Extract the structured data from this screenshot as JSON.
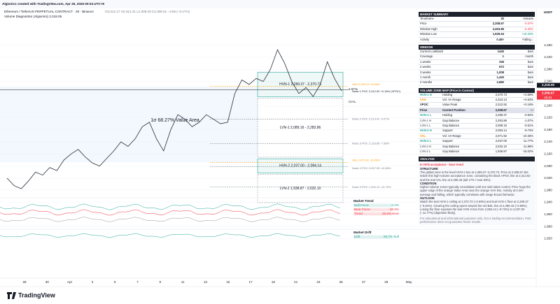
{
  "header": {
    "credit": "Algionics created with TradingView.com, Apr 25, 2026 00:04 UTC+9",
    "symbol": "Ethereum / TetherUS PERPETUAL CONTRACT · 30 · Binance",
    "ohlc": "O2,312.17 H2,312.41 L2,308.29 C2,308.51 −3.86 (−0.17%)",
    "indicator": "Volume Diagnostics (Algionics) 2,318.05"
  },
  "price_axis": {
    "unit": "USDT",
    "ylim": [
      1800,
      2480
    ],
    "yticks": [
      {
        "value": 1820,
        "label": "1,820"
      },
      {
        "value": 1860,
        "label": "1,860"
      },
      {
        "value": 1900,
        "label": "1,900"
      },
      {
        "value": 1940,
        "label": "1,940"
      },
      {
        "value": 1980,
        "label": "1,980"
      },
      {
        "value": 2020,
        "label": "2,020"
      },
      {
        "value": 2060,
        "label": "2,060"
      },
      {
        "value": 2100,
        "label": "2,100"
      },
      {
        "value": 2140,
        "label": "2,140"
      },
      {
        "value": 2180,
        "label": "2,180"
      },
      {
        "value": 2220,
        "label": "2,220"
      },
      {
        "value": 2260,
        "label": "2,260"
      },
      {
        "value": 2300,
        "label": "2,300"
      },
      {
        "value": 2340,
        "label": "2,340"
      },
      {
        "value": 2380,
        "label": "2,380"
      },
      {
        "value": 2420,
        "label": "2,420"
      },
      {
        "value": 2460,
        "label": "2,460"
      }
    ],
    "tags": [
      {
        "value": 2318.05,
        "label": "2,318.05",
        "color": "#131722"
      },
      {
        "value": 2308.67,
        "label": "2,308.67",
        "sub": "25:01",
        "color": "#f23645"
      }
    ]
  },
  "date_axis": [
    "28",
    "30",
    "Apr",
    "3",
    "5",
    "7",
    "9",
    "11",
    "13",
    "15",
    "17",
    "19",
    "21",
    "23",
    "25",
    "27",
    "29",
    "May"
  ],
  "price": {
    "color": "#2a2e39",
    "values": [
      2020,
      1995,
      1985,
      2010,
      2040,
      2030,
      2055,
      2045,
      2080,
      2100,
      2115,
      2090,
      2070,
      2060,
      2085,
      2110,
      2140,
      2125,
      2150,
      2190,
      2205,
      2150,
      2110,
      2180,
      2230,
      2215,
      2190,
      2205,
      2230,
      2215,
      2200,
      2205,
      2300,
      2345,
      2330,
      2350,
      2340,
      2380,
      2445,
      2400,
      2340,
      2300,
      2320,
      2290,
      2330,
      2405,
      2350,
      2309
    ]
  },
  "value_area": {
    "label": "1σ 68.27%  Value Area",
    "low": 2071.92,
    "high": 2323.13
  },
  "zones": [
    {
      "label": "HVN-1  2,289.37 - 2,370.73",
      "low": 2289.37,
      "high": 2370.73,
      "color": "#26a69a",
      "style": "solid"
    },
    {
      "label": "LVN-1  2,089.16 - 2,283.86",
      "low": 2089.16,
      "high": 2283.86,
      "color": "#9598a1",
      "style": "dashed"
    },
    {
      "label": "HVN-2  2,037.00 - 2,084.14",
      "low": 2037.0,
      "high": 2084.14,
      "color": "#26a69a",
      "style": "solid"
    },
    {
      "label": "LVN-2  1,938.87 - 2,032.10",
      "low": 1938.87,
      "high": 2032.1,
      "color": "#9598a1",
      "style": "dashed"
    }
  ],
  "levels": [
    {
      "label": "Node 1 POC 2,312.92 +0.18% (VPOC)",
      "price": 2312.92,
      "color": "#131722"
    },
    {
      "label": "VAH 2,323.13 +0.63%",
      "price": 2323.13,
      "color": "#ff9800"
    },
    {
      "label": "Node 2 POC 2,214.92 -4.07%",
      "price": 2214.92,
      "color": "#787b86"
    },
    {
      "label": "Node 3 POC 2,133.85 -7.58%",
      "price": 2133.85,
      "color": "#787b86"
    },
    {
      "label": "VAL 2,071.92 -10.26%",
      "price": 2071.92,
      "color": "#ff9800"
    },
    {
      "label": "Node 4 POC 2,057.95 -10.86%",
      "price": 2057.95,
      "color": "#787b86"
    },
    {
      "label": "Node 5 POC 1,990.13 -13.79%",
      "price": 1990.13,
      "color": "#787b86"
    }
  ],
  "annotations": [
    "2.97%",
    "CH-L"
  ],
  "subpanels": {
    "trend": {
      "title": "Market Trend",
      "rows": [
        {
          "name": "Bull Force",
          "value": "0.0%",
          "color": "#26a69a"
        },
        {
          "name": "Bear Force",
          "value": "26.5%",
          "color": "#f23645"
        },
        {
          "name": "Trend",
          "value": "26.5% Bear",
          "color": "#f23645"
        }
      ]
    },
    "drift": {
      "title": "Market Drift",
      "rows": [
        {
          "name": "Drift",
          "value": "50.7% Bull",
          "color": "#26a69a"
        }
      ]
    }
  },
  "logo": "TradingView",
  "panel": {
    "market_summary": {
      "title": "MARKET SUMMARY",
      "rows": [
        [
          "Timeframe",
          "30",
          "minutes"
        ],
        [
          "Price",
          "2,308.67",
          "-0.67%"
        ],
        [
          "Window High",
          "2,463.86",
          "-6.30%"
        ],
        [
          "Window Low",
          "1,926.54",
          "+19.32%"
        ],
        [
          "Activity",
          "0.48×",
          "Falling ↓"
        ]
      ]
    },
    "window": {
      "title": "WINDOW",
      "rows": [
        [
          "Current Lookback",
          "1440",
          "bars"
        ],
        [
          "Coverage",
          "1",
          "month"
        ],
        [
          "1 weeks",
          "336",
          "bars"
        ],
        [
          "2 weeks",
          "672",
          "bars"
        ],
        [
          "3 weeks",
          "1,008",
          "bars"
        ],
        [
          "1 month",
          "1,440",
          "bars"
        ],
        [
          "2 months",
          "2,880",
          "bars"
        ]
      ]
    },
    "zone_map": {
      "title": "VOLUME ZONE MAP (Price in Context)",
      "rows": [
        {
          "cells": [
            "HVN-1 H",
            "Holding",
            "2,370.73",
            "+2.69%"
          ],
          "color": "#26a69a"
        },
        {
          "cells": [
            "VAH",
            "Vol. VA Range",
            "2,323.13",
            "+0.63%"
          ],
          "color": "#ff9800"
        },
        {
          "cells": [
            "VPOC",
            "Value Peak",
            "2,312.92",
            "+0.18%"
          ],
          "color": "#131722"
        },
        {
          "cells": [
            "Price",
            "Current Position",
            "2,308.67",
            "—"
          ],
          "color": "#131722",
          "highlight": true
        },
        {
          "cells": [
            "HVN-1 L",
            "Holding",
            "2,289.37",
            "-0.84%"
          ],
          "color": "#26a69a"
        },
        {
          "cells": [
            "LVN-1 H",
            "Gap Balance",
            "2,283.86",
            "-1.07%"
          ],
          "color": "#787b86"
        },
        {
          "cells": [
            "LVN-1 L",
            "Gap Balance",
            "2,089.16",
            "-9.51%"
          ],
          "color": "#787b86"
        },
        {
          "cells": [
            "HVN-2 H",
            "Support",
            "2,084.14",
            "-9.73%"
          ],
          "color": "#26a69a"
        },
        {
          "cells": [
            "VAL",
            "Vol. VA Range",
            "2,071.92",
            "-10.26%"
          ],
          "color": "#ff9800"
        },
        {
          "cells": [
            "HVN-2 L",
            "Support",
            "2,037.00",
            "-11.77%"
          ],
          "color": "#26a69a"
        },
        {
          "cells": [
            "LVN-2 H",
            "Gap Balance",
            "2,032.10",
            "-11.98%"
          ],
          "color": "#787b86"
        },
        {
          "cells": [
            "LVN-2 L",
            "Gap Balance",
            "1,938.87",
            "-16.02%"
          ],
          "color": "#787b86"
        }
      ]
    },
    "analysis": {
      "title": "ANALYSIS",
      "headline": "In HVN acceptance · bear trend",
      "sections": [
        {
          "heading": "STRUCTURE",
          "text": "The global zone is the level HVN-1 box at 2,289.37–2,370.73. Price at 2,308.67 sits inside this high-volume acceptance zone, containing the black VPOC line at 2,312.92 and the teal VAL line at 2,298.46 (tall 17% / near 83%)."
        },
        {
          "heading": "CONDITION",
          "text": "Higher-volume zones typically consolidate until one side takes control. Price hugs the upper edge of the orange Value Area near the orange VAH line. Activity at 0.48× average and falling, which typically correlates with range-bound behavior."
        },
        {
          "heading": "OUTLOOK",
          "text": "Watch the teal HVN-1 ceiling at 2,370.73 (+2.69%) and teal HVN-1 floor at 2,289.37 (−0.84%). Clearing the ceiling opens toward the red BSL line at 2,399.43 (+3.98%). Losing the floor exposes the teal HVN-2 box from 2,084.14 (−9.73%) to 2,037.00 (−11.77%) (digestion likely)."
        }
      ],
      "disclaimer": "For educational and informational purposes only. Not a trading recommendation. Past performance does not guarantee future results."
    }
  }
}
